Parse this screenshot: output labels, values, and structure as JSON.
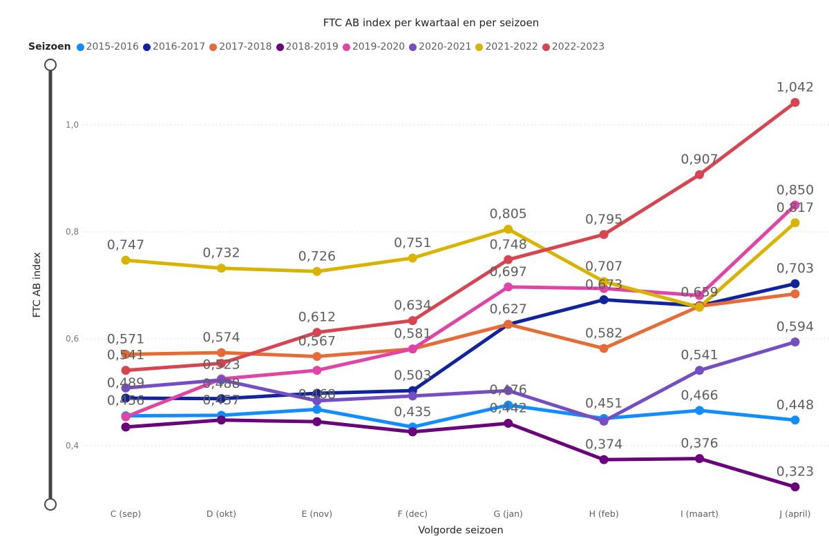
{
  "chart_data": {
    "type": "line",
    "title": "FTC AB index per kwartaal en per seizoen",
    "xlabel": "Volgorde seizoen",
    "ylabel": "FTC AB index",
    "legend_title": "Seizoen",
    "legend_position": "top-left",
    "grid": true,
    "ylim": [
      0.29,
      1.13
    ],
    "yticks": [
      0.4,
      0.6,
      0.8,
      1.0
    ],
    "ytick_labels": [
      "0,4",
      "0,6",
      "0,8",
      "1,0"
    ],
    "categories": [
      "C (sep)",
      "D (okt)",
      "E (nov)",
      "F (dec)",
      "G (jan)",
      "H (feb)",
      "I (maart)",
      "J (april)"
    ],
    "series": [
      {
        "name": "2015-2016",
        "color": "#118DFF",
        "values": [
          0.456,
          0.457,
          0.468,
          0.435,
          0.476,
          0.451,
          0.466,
          0.448
        ],
        "labeled": [
          true,
          true,
          true,
          true,
          true,
          true,
          true,
          true
        ]
      },
      {
        "name": "2016-2017",
        "color": "#12239E",
        "values": [
          0.489,
          0.488,
          0.498,
          0.503,
          0.627,
          0.673,
          0.662,
          0.703
        ],
        "labeled": [
          true,
          true,
          false,
          true,
          false,
          true,
          false,
          true
        ]
      },
      {
        "name": "2017-2018",
        "color": "#E66C37",
        "values": [
          0.571,
          0.574,
          0.567,
          0.581,
          0.627,
          0.582,
          0.661,
          0.684
        ],
        "labeled": [
          true,
          true,
          true,
          false,
          true,
          true,
          false,
          false
        ]
      },
      {
        "name": "2018-2019",
        "color": "#6B007B",
        "values": [
          0.435,
          0.448,
          0.445,
          0.426,
          0.442,
          0.374,
          0.376,
          0.323
        ],
        "labeled": [
          false,
          false,
          false,
          false,
          true,
          true,
          true,
          true
        ]
      },
      {
        "name": "2019-2020",
        "color": "#E044A7",
        "values": [
          0.454,
          0.525,
          0.541,
          0.581,
          0.697,
          0.694,
          0.681,
          0.85
        ],
        "labeled": [
          false,
          false,
          false,
          true,
          true,
          false,
          false,
          true
        ]
      },
      {
        "name": "2020-2021",
        "color": "#744EC2",
        "values": [
          0.508,
          0.523,
          0.484,
          0.493,
          0.503,
          0.446,
          0.541,
          0.594
        ],
        "labeled": [
          false,
          true,
          false,
          false,
          false,
          false,
          true,
          true
        ]
      },
      {
        "name": "2021-2022",
        "color": "#D9B300",
        "values": [
          0.747,
          0.732,
          0.726,
          0.751,
          0.805,
          0.707,
          0.659,
          0.817
        ],
        "labeled": [
          true,
          true,
          true,
          true,
          true,
          true,
          true,
          true
        ]
      },
      {
        "name": "2022-2023",
        "color": "#D64550",
        "values": [
          0.541,
          0.554,
          0.612,
          0.634,
          0.748,
          0.795,
          0.907,
          1.042
        ],
        "labeled": [
          true,
          false,
          true,
          true,
          true,
          true,
          true,
          true
        ]
      }
    ]
  },
  "slider": {
    "label": "y-axis range slider"
  }
}
